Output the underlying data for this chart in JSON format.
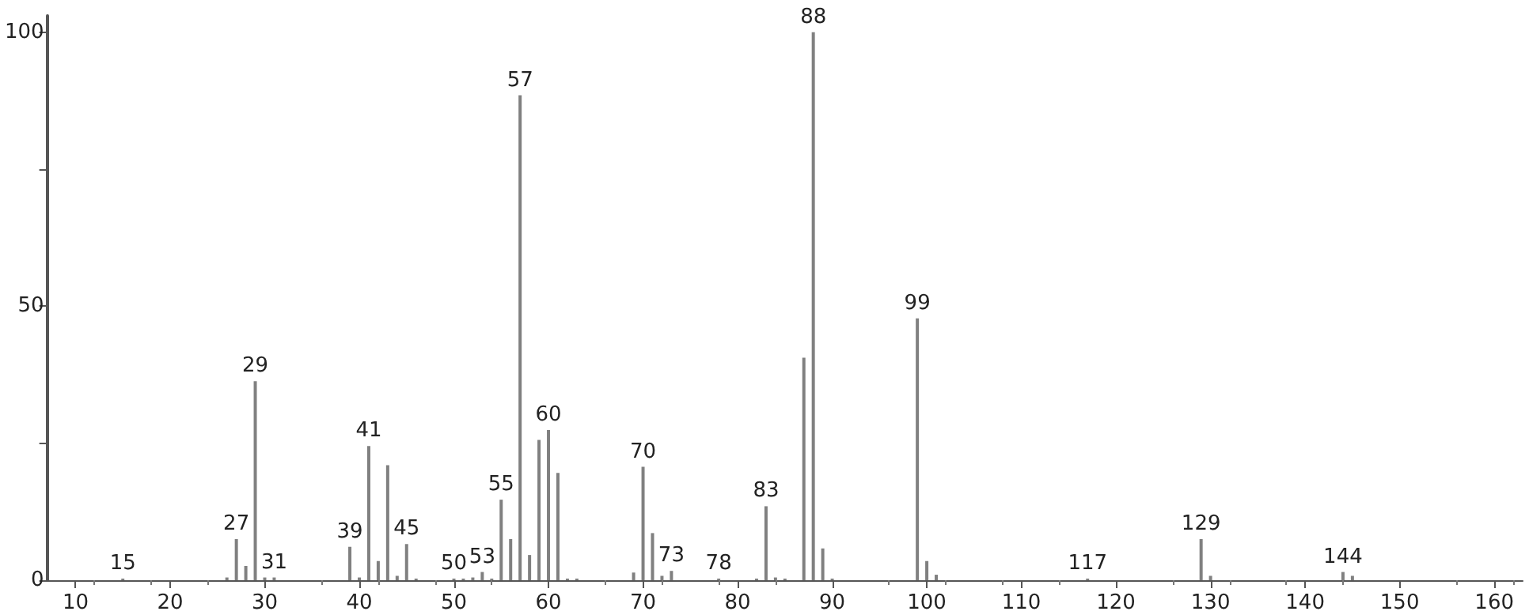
{
  "chart_data": {
    "type": "bar",
    "color": "#808080",
    "x": [
      15,
      26,
      27,
      28,
      29,
      30,
      31,
      39,
      40,
      41,
      42,
      43,
      44,
      45,
      46,
      50,
      51,
      52,
      53,
      54,
      55,
      56,
      57,
      58,
      59,
      60,
      61,
      62,
      63,
      69,
      70,
      71,
      72,
      73,
      78,
      82,
      83,
      84,
      85,
      87,
      88,
      89,
      90,
      99,
      100,
      101,
      117,
      129,
      130,
      144,
      145
    ],
    "values": [
      0.3,
      0.5,
      7.5,
      2.6,
      36.3,
      0.5,
      0.5,
      6.1,
      0.5,
      24.5,
      3.5,
      21,
      0.8,
      6.6,
      0.3,
      0.3,
      0.3,
      0.5,
      1.5,
      0.3,
      14.7,
      7.5,
      88.5,
      4.6,
      25.6,
      27.4,
      19.6,
      0.3,
      0.3,
      1.4,
      20.7,
      8.6,
      0.8,
      1.7,
      0.3,
      0.3,
      13.5,
      0.5,
      0.3,
      40.6,
      100,
      5.8,
      0.3,
      47.8,
      3.5,
      1,
      0.3,
      7.5,
      0.8,
      1.5,
      0.8
    ],
    "xlim": [
      7,
      163
    ],
    "xticks": [
      10,
      20,
      30,
      40,
      50,
      60,
      70,
      80,
      90,
      100,
      110,
      120,
      130,
      140,
      150,
      160
    ],
    "ylim": [
      0,
      103
    ],
    "yticks": [
      0,
      {
        "value": 25,
        "label": null
      },
      50,
      {
        "value": 75,
        "label": null
      },
      100
    ],
    "grid": false,
    "annotations": [
      {
        "text": "15",
        "x": 15,
        "y": 0.3
      },
      {
        "text": "27",
        "x": 27,
        "y": 7.5
      },
      {
        "text": "29",
        "x": 29,
        "y": 36.3
      },
      {
        "text": "31",
        "x": 31,
        "y": 0.5
      },
      {
        "text": "39",
        "x": 39,
        "y": 6.1
      },
      {
        "text": "41",
        "x": 41,
        "y": 24.5
      },
      {
        "text": "45",
        "x": 45,
        "y": 6.6
      },
      {
        "text": "50",
        "x": 50,
        "y": 0.3
      },
      {
        "text": "53",
        "x": 53,
        "y": 1.5
      },
      {
        "text": "55",
        "x": 55,
        "y": 14.7
      },
      {
        "text": "57",
        "x": 57,
        "y": 88.5
      },
      {
        "text": "60",
        "x": 60,
        "y": 27.4
      },
      {
        "text": "70",
        "x": 70,
        "y": 20.7
      },
      {
        "text": "73",
        "x": 73,
        "y": 1.7
      },
      {
        "text": "78",
        "x": 78,
        "y": 0.3
      },
      {
        "text": "83",
        "x": 83,
        "y": 13.5
      },
      {
        "text": "88",
        "x": 88,
        "y": 100
      },
      {
        "text": "99",
        "x": 99,
        "y": 47.8
      },
      {
        "text": "117",
        "x": 117,
        "y": 0.3
      },
      {
        "text": "129",
        "x": 129,
        "y": 7.5
      },
      {
        "text": "144",
        "x": 144,
        "y": 1.5
      }
    ]
  }
}
